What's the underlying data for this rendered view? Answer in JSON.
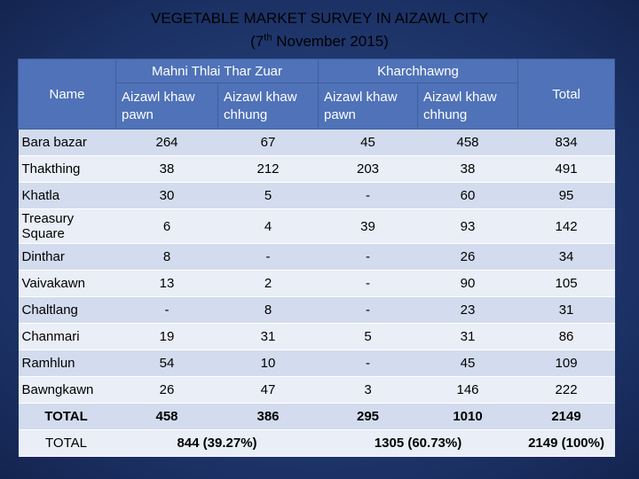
{
  "title": {
    "line_1": "VEGETABLE MARKET SURVEY IN AIZAWL CITY",
    "line_2_before": "(7",
    "line_2_sup": "th",
    "line_2_after": " November 2015)"
  },
  "table": {
    "header": {
      "name": "Name",
      "group_1": "Mahni Thlai Thar Zuar",
      "group_2": "Kharchhawng",
      "total": "Total",
      "subheaders": [
        "Aizawl khaw pawn",
        "Aizawl khaw chhung",
        "Aizawl khaw pawn",
        "Aizawl khaw chhung"
      ]
    },
    "rows": [
      [
        "Bara bazar",
        "264",
        "67",
        "45",
        "458",
        "834"
      ],
      [
        "Thakthing",
        "38",
        "212",
        "203",
        "38",
        "491"
      ],
      [
        "Khatla",
        "30",
        "5",
        "-",
        "60",
        "95"
      ],
      [
        "Treasury Square",
        "6",
        "4",
        "39",
        "93",
        "142"
      ],
      [
        "Dinthar",
        "8",
        "-",
        "-",
        "26",
        "34"
      ],
      [
        "Vaivakawn",
        "13",
        "2",
        "-",
        "90",
        "105"
      ],
      [
        "Chaltlang",
        "-",
        "8",
        "-",
        "23",
        "31"
      ],
      [
        "Chanmari",
        "19",
        "31",
        "5",
        "31",
        "86"
      ],
      [
        "Ramhlun",
        "54",
        "10",
        "-",
        "45",
        "109"
      ],
      [
        "Bawngkawn",
        "26",
        "47",
        "3",
        "146",
        "222"
      ],
      [
        "TOTAL",
        "458",
        "386",
        "295",
        "1010",
        "2149"
      ],
      [
        "TOTAL",
        "844 (39.27%)",
        "1305 (60.73%)",
        "2149 (100%)"
      ]
    ]
  }
}
